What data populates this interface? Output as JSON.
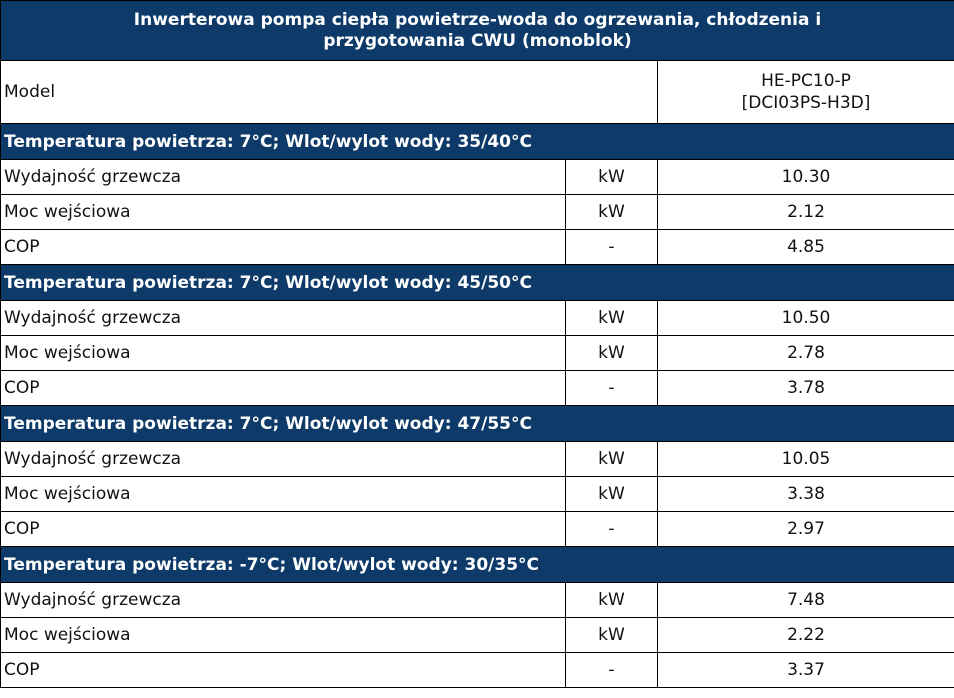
{
  "table": {
    "title_line1": "Inwerterowa pompa ciepła powietrze-woda do ogrzewania, chłodzenia i",
    "title_line2": "przygotowania CWU (monoblok)",
    "model_label": "Model",
    "model_value_line1": "HE-PC10-P",
    "model_value_line2": "[DCI03PS-H3D]",
    "sections": [
      {
        "header": "Temperatura powietrza: 7°C; Wlot/wylot wody: 35/40°C",
        "rows": [
          {
            "label": "Wydajność grzewcza",
            "unit": "kW",
            "value": "10.30"
          },
          {
            "label": "Moc wejściowa",
            "unit": "kW",
            "value": "2.12"
          },
          {
            "label": "COP",
            "unit": "-",
            "value": "4.85"
          }
        ]
      },
      {
        "header": "Temperatura powietrza: 7°C; Wlot/wylot wody: 45/50°C",
        "rows": [
          {
            "label": "Wydajność grzewcza",
            "unit": "kW",
            "value": "10.50"
          },
          {
            "label": "Moc wejściowa",
            "unit": "kW",
            "value": "2.78"
          },
          {
            "label": "COP",
            "unit": "-",
            "value": "3.78"
          }
        ]
      },
      {
        "header": "Temperatura powietrza: 7°C; Wlot/wylot wody: 47/55°C",
        "rows": [
          {
            "label": "Wydajność grzewcza",
            "unit": "kW",
            "value": "10.05"
          },
          {
            "label": "Moc wejściowa",
            "unit": "kW",
            "value": "3.38"
          },
          {
            "label": "COP",
            "unit": "-",
            "value": "2.97"
          }
        ]
      },
      {
        "header": "Temperatura powietrza: -7°C; Wlot/wylot wody: 30/35°C",
        "rows": [
          {
            "label": "Wydajność grzewcza",
            "unit": "kW",
            "value": "7.48"
          },
          {
            "label": "Moc wejściowa",
            "unit": "kW",
            "value": "2.22"
          },
          {
            "label": "COP",
            "unit": "-",
            "value": "3.37"
          }
        ]
      }
    ]
  }
}
